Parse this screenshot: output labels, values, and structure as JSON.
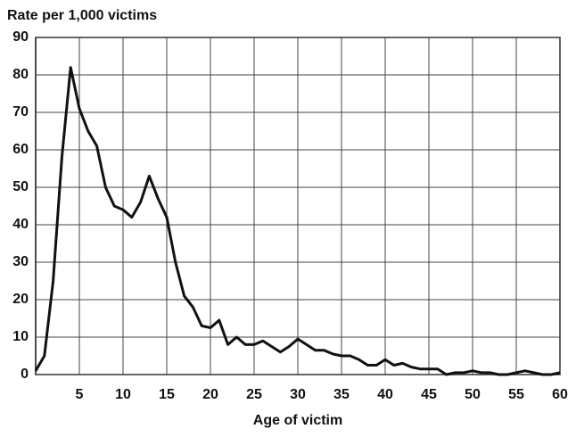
{
  "chart_data": {
    "type": "line",
    "y_label": "Rate per 1,000 victims",
    "x_label": "Age of victim",
    "x": [
      0,
      1,
      2,
      3,
      4,
      5,
      6,
      7,
      8,
      9,
      10,
      11,
      12,
      13,
      14,
      15,
      16,
      17,
      18,
      19,
      20,
      21,
      22,
      23,
      24,
      25,
      26,
      27,
      28,
      29,
      30,
      31,
      32,
      33,
      34,
      35,
      36,
      37,
      38,
      39,
      40,
      41,
      42,
      43,
      44,
      45,
      46,
      47,
      48,
      49,
      50,
      51,
      52,
      53,
      54,
      55,
      56,
      57,
      58,
      59,
      60
    ],
    "series": [
      {
        "name": "Rate",
        "color": "#111111",
        "values": [
          1,
          5,
          25,
          58,
          82,
          71,
          65,
          61,
          50,
          45,
          44,
          42,
          46,
          53,
          47,
          42,
          30,
          21,
          18,
          13,
          12.5,
          14.5,
          8,
          10,
          8,
          8,
          9,
          7.5,
          6,
          7.5,
          9.5,
          8,
          6.5,
          6.5,
          5.5,
          5,
          5,
          4,
          2.5,
          2.5,
          4,
          2.5,
          3,
          2,
          1.5,
          1.5,
          1.5,
          0,
          0.5,
          0.5,
          1,
          0.5,
          0.5,
          0,
          0,
          0.5,
          1,
          0.5,
          0,
          0,
          0.5
        ]
      }
    ],
    "xlim": [
      0,
      60
    ],
    "xticks": [
      5,
      10,
      15,
      20,
      25,
      30,
      35,
      40,
      45,
      50,
      55,
      60
    ],
    "ylim": [
      0,
      90
    ],
    "yticks": [
      0,
      10,
      20,
      30,
      40,
      50,
      60,
      70,
      80,
      90
    ],
    "grid": true
  }
}
